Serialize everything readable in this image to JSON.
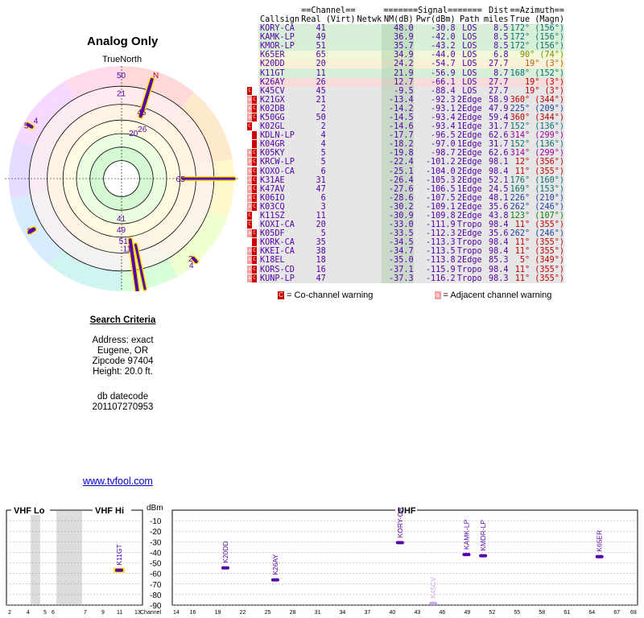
{
  "title": "Analog Only",
  "truenorth_label": "TrueNorth",
  "north_marker": "N",
  "rings": [
    {
      "az": 0,
      "label": "50",
      "rad": 0.92
    },
    {
      "az": 0,
      "label": "21",
      "rad": 0.76
    },
    {
      "az": 17,
      "label": "45",
      "rad": 0.62
    },
    {
      "az": 23,
      "label": "26",
      "rad": 0.48
    },
    {
      "az": 15,
      "label": "20",
      "rad": 0.42
    },
    {
      "az": 90,
      "label": "65",
      "rad": 0.54
    },
    {
      "az": 300,
      "label": "5",
      "rad": 0.95
    },
    {
      "az": 305,
      "label": "4",
      "rad": 0.9
    },
    {
      "az": 180,
      "label": "41",
      "rad": 0.35
    },
    {
      "az": 180,
      "label": "49",
      "rad": 0.45
    },
    {
      "az": 178,
      "label": "51",
      "rad": 0.55
    },
    {
      "az": 175,
      "label": "11",
      "rad": 0.62
    },
    {
      "az": 240,
      "label": "2",
      "rad": 0.92
    },
    {
      "az": 138,
      "label": "2",
      "rad": 0.95
    },
    {
      "az": 140,
      "label": "4",
      "rad": 1.0
    }
  ],
  "table": {
    "header_top": [
      "==Channel==",
      "=======Signal=======",
      "Dist",
      "==Azimuth=="
    ],
    "columns": [
      "Callsign",
      "Real (Virt)",
      "Netwk",
      "NM(dB)",
      "Pwr(dBm)",
      "Path",
      "miles",
      "True (Magn)"
    ],
    "rows": [
      {
        "call": "KORY-CA",
        "real": "41",
        "virt": "",
        "netwk": "",
        "nm": "48.0",
        "pwr": "-30.8",
        "path": "LOS",
        "dist": "8.5",
        "az": "172°",
        "magn": "(156°)",
        "bg": "#d8f0d8",
        "azc": "#0a7070",
        "warn": ""
      },
      {
        "call": "KAMK-LP",
        "real": "49",
        "virt": "",
        "netwk": "",
        "nm": "36.9",
        "pwr": "-42.0",
        "path": "LOS",
        "dist": "8.5",
        "az": "172°",
        "magn": "(156°)",
        "bg": "#d8f0d8",
        "azc": "#0a7070",
        "warn": ""
      },
      {
        "call": "KMOR-LP",
        "real": "51",
        "virt": "",
        "netwk": "",
        "nm": "35.7",
        "pwr": "-43.2",
        "path": "LOS",
        "dist": "8.5",
        "az": "172°",
        "magn": "(156°)",
        "bg": "#d8f0d8",
        "azc": "#0a7070",
        "warn": ""
      },
      {
        "call": "K65ER",
        "real": "65",
        "virt": "",
        "netwk": "",
        "nm": "34.9",
        "pwr": "-44.0",
        "path": "LOS",
        "dist": "6.8",
        "az": "90°",
        "magn": "(74°)",
        "bg": "#f0f8d8",
        "azc": "#8a8a00",
        "warn": ""
      },
      {
        "call": "K20DD",
        "real": "20",
        "virt": "",
        "netwk": "",
        "nm": "24.2",
        "pwr": "-54.7",
        "path": "LOS",
        "dist": "27.7",
        "az": "19°",
        "magn": "(3°)",
        "bg": "#f8f0d8",
        "azc": "#c06000",
        "warn": ""
      },
      {
        "call": "K11GT",
        "real": "11",
        "virt": "",
        "netwk": "",
        "nm": "21.9",
        "pwr": "-56.9",
        "path": "LOS",
        "dist": "8.7",
        "az": "168°",
        "magn": "(152°)",
        "bg": "#d8f0d8",
        "azc": "#0a7070",
        "warn": ""
      },
      {
        "call": "K26AY",
        "real": "26",
        "virt": "",
        "netwk": "",
        "nm": "12.7",
        "pwr": "-66.1",
        "path": "LOS",
        "dist": "27.7",
        "az": "19°",
        "magn": "(3°)",
        "bg": "#f8dcdc",
        "azc": "#c00000",
        "warn": ""
      },
      {
        "call": "K45CV",
        "real": "45",
        "virt": "",
        "netwk": "",
        "nm": "-9.5",
        "pwr": "-88.4",
        "path": "LOS",
        "dist": "27.7",
        "az": "19°",
        "magn": "(3°)",
        "bg": "#e6e6e6",
        "azc": "#c00000",
        "warn": "C"
      },
      {
        "call": "K21GX",
        "real": "21",
        "virt": "",
        "netwk": "",
        "nm": "-13.4",
        "pwr": "-92.3",
        "path": "2Edge",
        "dist": "58.9",
        "az": "360°",
        "magn": "(344°)",
        "bg": "#e6e6e6",
        "azc": "#c00000",
        "warn": "AC"
      },
      {
        "call": "K02DB",
        "real": "2",
        "virt": "",
        "netwk": "",
        "nm": "-14.2",
        "pwr": "-93.1",
        "path": "2Edge",
        "dist": "47.9",
        "az": "225°",
        "magn": "(209°)",
        "bg": "#e6e6e6",
        "azc": "#2040a0",
        "warn": "AC"
      },
      {
        "call": "K50GG",
        "real": "50",
        "virt": "",
        "netwk": "",
        "nm": "-14.5",
        "pwr": "-93.4",
        "path": "2Edge",
        "dist": "59.4",
        "az": "360°",
        "magn": "(344°)",
        "bg": "#e6e6e6",
        "azc": "#c00000",
        "warn": "AC"
      },
      {
        "call": "K02GL",
        "real": "2",
        "virt": "",
        "netwk": "",
        "nm": "-14.6",
        "pwr": "-93.4",
        "path": "1Edge",
        "dist": "31.7",
        "az": "152°",
        "magn": "(136°)",
        "bg": "#e6e6e6",
        "azc": "#0a7070",
        "warn": "C"
      },
      {
        "call": "KDLN-LP",
        "real": "4",
        "virt": "",
        "netwk": "",
        "nm": "-17.7",
        "pwr": "-96.5",
        "path": "2Edge",
        "dist": "62.6",
        "az": "314°",
        "magn": "(299°)",
        "bg": "#e6e6e6",
        "azc": "#a000a0",
        "warn": ""
      },
      {
        "call": "K04GR",
        "real": "4",
        "virt": "",
        "netwk": "",
        "nm": "-18.2",
        "pwr": "-97.0",
        "path": "1Edge",
        "dist": "31.7",
        "az": "152°",
        "magn": "(136°)",
        "bg": "#e6e6e6",
        "azc": "#0a7070",
        "warn": ""
      },
      {
        "call": "K05KY",
        "real": "5",
        "virt": "",
        "netwk": "",
        "nm": "-19.8",
        "pwr": "-98.7",
        "path": "2Edge",
        "dist": "62.6",
        "az": "314°",
        "magn": "(299°)",
        "bg": "#e6e6e6",
        "azc": "#a000a0",
        "warn": "AC"
      },
      {
        "call": "KRCW-LP",
        "real": "5",
        "virt": "",
        "netwk": "",
        "nm": "-22.4",
        "pwr": "-101.2",
        "path": "2Edge",
        "dist": "98.1",
        "az": "12°",
        "magn": "(356°)",
        "bg": "#e6e6e6",
        "azc": "#c00000",
        "warn": "AC"
      },
      {
        "call": "KOXO-CA",
        "real": "6",
        "virt": "",
        "netwk": "",
        "nm": "-25.1",
        "pwr": "-104.0",
        "path": "2Edge",
        "dist": "98.4",
        "az": "11°",
        "magn": "(355°)",
        "bg": "#e6e6e6",
        "azc": "#c00000",
        "warn": "AC"
      },
      {
        "call": "K31AE",
        "real": "31",
        "virt": "",
        "netwk": "",
        "nm": "-26.4",
        "pwr": "-105.3",
        "path": "2Edge",
        "dist": "52.1",
        "az": "176°",
        "magn": "(160°)",
        "bg": "#e6e6e6",
        "azc": "#0a7070",
        "warn": "AC"
      },
      {
        "call": "K47AV",
        "real": "47",
        "virt": "",
        "netwk": "",
        "nm": "-27.6",
        "pwr": "-106.5",
        "path": "1Edge",
        "dist": "24.5",
        "az": "169°",
        "magn": "(153°)",
        "bg": "#e6e6e6",
        "azc": "#0a7070",
        "warn": "AC"
      },
      {
        "call": "K06IO",
        "real": "6",
        "virt": "",
        "netwk": "",
        "nm": "-28.6",
        "pwr": "-107.5",
        "path": "2Edge",
        "dist": "48.1",
        "az": "226°",
        "magn": "(210°)",
        "bg": "#e6e6e6",
        "azc": "#2040a0",
        "warn": "AC"
      },
      {
        "call": "K03CQ",
        "real": "3",
        "virt": "",
        "netwk": "",
        "nm": "-30.2",
        "pwr": "-109.1",
        "path": "2Edge",
        "dist": "35.6",
        "az": "262°",
        "magn": "(246°)",
        "bg": "#e6e6e6",
        "azc": "#2040a0",
        "warn": "AC"
      },
      {
        "call": "K11SZ",
        "real": "11",
        "virt": "",
        "netwk": "",
        "nm": "-30.9",
        "pwr": "-109.8",
        "path": "2Edge",
        "dist": "43.8",
        "az": "123°",
        "magn": "(107°)",
        "bg": "#e6e6e6",
        "azc": "#108010",
        "warn": "C"
      },
      {
        "call": "KOXI-CA",
        "real": "20",
        "virt": "",
        "netwk": "",
        "nm": "-33.0",
        "pwr": "-111.9",
        "path": "Tropo",
        "dist": "98.4",
        "az": "11°",
        "magn": "(355°)",
        "bg": "#e6e6e6",
        "azc": "#c00000",
        "warn": "C"
      },
      {
        "call": "K05DF",
        "real": "5",
        "virt": "",
        "netwk": "",
        "nm": "-33.5",
        "pwr": "-112.3",
        "path": "2Edge",
        "dist": "35.6",
        "az": "262°",
        "magn": "(246°)",
        "bg": "#e6e6e6",
        "azc": "#2040a0",
        "warn": "AC"
      },
      {
        "call": "KORK-CA",
        "real": "35",
        "virt": "",
        "netwk": "",
        "nm": "-34.5",
        "pwr": "-113.3",
        "path": "Tropo",
        "dist": "98.4",
        "az": "11°",
        "magn": "(355°)",
        "bg": "#e6e6e6",
        "azc": "#c00000",
        "warn": ""
      },
      {
        "call": "KKEI-CA",
        "real": "38",
        "virt": "",
        "netwk": "",
        "nm": "-34.7",
        "pwr": "-113.5",
        "path": "Tropo",
        "dist": "98.4",
        "az": "11°",
        "magn": "(355°)",
        "bg": "#e6e6e6",
        "azc": "#c00000",
        "warn": "AC"
      },
      {
        "call": "K18EL",
        "real": "18",
        "virt": "",
        "netwk": "",
        "nm": "-35.0",
        "pwr": "-113.8",
        "path": "2Edge",
        "dist": "85.3",
        "az": "5°",
        "magn": "(349°)",
        "bg": "#e6e6e6",
        "azc": "#c00000",
        "warn": "AC"
      },
      {
        "call": "KORS-CD",
        "real": "16",
        "virt": "",
        "netwk": "",
        "nm": "-37.1",
        "pwr": "-115.9",
        "path": "Tropo",
        "dist": "98.4",
        "az": "11°",
        "magn": "(355°)",
        "bg": "#e6e6e6",
        "azc": "#c00000",
        "warn": "AC"
      },
      {
        "call": "KUNP-LP",
        "real": "47",
        "virt": "",
        "netwk": "",
        "nm": "-37.3",
        "pwr": "-116.2",
        "path": "Tropo",
        "dist": "98.3",
        "az": "11°",
        "magn": "(355°)",
        "bg": "#e6e6e6",
        "azc": "#c00000",
        "warn": "AC"
      }
    ]
  },
  "legend": {
    "co_icon": "C",
    "co_text": " = Co-channel warning",
    "adj_icon": "a",
    "adj_text": " = Adjacent channel warning"
  },
  "criteria": {
    "heading": "Search Criteria",
    "address": "Address: exact",
    "city": "Eugene, OR",
    "zip": "Zipcode 97404",
    "height": "Height: 20.0 ft.",
    "db_label": "db datecode",
    "db_code": "201107270953"
  },
  "site_link": "www.tvfool.com",
  "spectrum": {
    "band_labels": [
      "VHF Lo",
      "VHF Hi",
      "UHF"
    ],
    "unit_label": "dBm",
    "dbm_ticks": [
      "-10",
      "-20",
      "-30",
      "-40",
      "-50",
      "-60",
      "-70",
      "-80",
      "-90"
    ],
    "channel_word": "Channel",
    "lo_ticks": [
      "2",
      "4",
      "5",
      "6",
      "7"
    ],
    "hi_ticks": [
      "9",
      "11",
      "13"
    ],
    "uhf_ticks": [
      "14",
      "16",
      "19",
      "22",
      "25",
      "28",
      "31",
      "34",
      "37",
      "40",
      "43",
      "46",
      "49",
      "52",
      "55",
      "58",
      "61",
      "64",
      "67",
      "69"
    ],
    "stations": [
      {
        "call": "K11GT",
        "ch": 11,
        "dbm": -56.9
      },
      {
        "call": "K20DD",
        "ch": 20,
        "dbm": -54.7
      },
      {
        "call": "K26AY",
        "ch": 26,
        "dbm": -66.1
      },
      {
        "call": "KORY-CA",
        "ch": 41,
        "dbm": -30.8
      },
      {
        "call": "K45CV",
        "ch": 45,
        "dbm": -88.4
      },
      {
        "call": "KAMK-LP",
        "ch": 49,
        "dbm": -42.0
      },
      {
        "call": "KMOR-LP",
        "ch": 51,
        "dbm": -43.2
      },
      {
        "call": "K65ER",
        "ch": 65,
        "dbm": -44.0
      }
    ]
  },
  "colors": {
    "purple": "#5500aa",
    "yellow": "#ffe100",
    "warn_red": "#c00000",
    "warn_pink": "#f4a0a0",
    "link": "#0000cc"
  }
}
